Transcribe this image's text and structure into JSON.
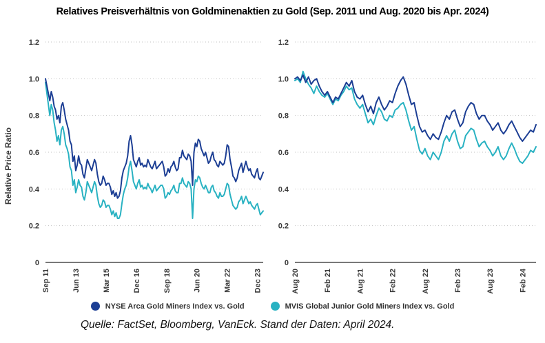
{
  "title": "Relatives Preisverhältnis von Goldminenaktien zu Gold (Sep. 2011 und Aug. 2020 bis Apr. 2024)",
  "y_axis_label": "Relative Price Ratio",
  "source": "Quelle: FactSet, Bloomberg, VanEck. Stand der Daten: April 2024.",
  "colors": {
    "navy": "#1c3e94",
    "teal": "#29b2c2",
    "grid": "#c2c2c2",
    "axis": "#4d4d4d",
    "tick_text": "#3a3a3a"
  },
  "legend": [
    {
      "label": "NYSE Arca Gold Miners Index vs. Gold",
      "color_key": "navy"
    },
    {
      "label": "MVIS Global Junior Gold Miners Index vs. Gold",
      "color_key": "teal"
    }
  ],
  "chart_data": [
    {
      "type": "line",
      "id": "left-panel",
      "period": "Sep 2011 - Apr 2024, monthly",
      "ylim": [
        0,
        1.2
      ],
      "grid": "dotted horizontal",
      "y_ticks": [
        {
          "label": "1.2",
          "value": 1.2
        },
        {
          "label": "1.0",
          "value": 1.0
        },
        {
          "label": "0.8",
          "value": 0.8
        },
        {
          "label": "0.6",
          "value": 0.6
        },
        {
          "label": "0.4",
          "value": 0.4
        },
        {
          "label": "0.2",
          "value": 0.2
        },
        {
          "label": "0",
          "value": 0
        }
      ],
      "x_ticks": [
        {
          "label": "Sep 11",
          "index": 0
        },
        {
          "label": "Jun 13",
          "index": 21
        },
        {
          "label": "Mar 15",
          "index": 42
        },
        {
          "label": "Dec 16",
          "index": 63
        },
        {
          "label": "Sep 18",
          "index": 84
        },
        {
          "label": "Jun 20",
          "index": 105
        },
        {
          "label": "Mar 22",
          "index": 126
        },
        {
          "label": "Dec 23",
          "index": 147
        }
      ],
      "series": [
        {
          "name": "NYSE Arca Gold Miners Index vs. Gold",
          "color_key": "navy",
          "values": [
            1.0,
            0.96,
            0.92,
            0.88,
            0.93,
            0.9,
            0.85,
            0.83,
            0.78,
            0.8,
            0.76,
            0.85,
            0.87,
            0.83,
            0.78,
            0.75,
            0.72,
            0.66,
            0.64,
            0.55,
            0.58,
            0.5,
            0.53,
            0.58,
            0.54,
            0.53,
            0.48,
            0.46,
            0.51,
            0.56,
            0.54,
            0.52,
            0.5,
            0.53,
            0.56,
            0.54,
            0.48,
            0.44,
            0.42,
            0.43,
            0.47,
            0.45,
            0.42,
            0.43,
            0.43,
            0.41,
            0.37,
            0.39,
            0.36,
            0.38,
            0.35,
            0.36,
            0.39,
            0.46,
            0.5,
            0.52,
            0.54,
            0.58,
            0.66,
            0.69,
            0.64,
            0.56,
            0.54,
            0.52,
            0.55,
            0.57,
            0.53,
            0.54,
            0.52,
            0.53,
            0.52,
            0.56,
            0.54,
            0.52,
            0.51,
            0.53,
            0.55,
            0.51,
            0.52,
            0.53,
            0.54,
            0.55,
            0.52,
            0.47,
            0.48,
            0.51,
            0.49,
            0.52,
            0.53,
            0.55,
            0.52,
            0.5,
            0.51,
            0.57,
            0.57,
            0.61,
            0.58,
            0.57,
            0.56,
            0.59,
            0.58,
            0.55,
            0.42,
            0.6,
            0.65,
            0.63,
            0.67,
            0.66,
            0.62,
            0.6,
            0.58,
            0.6,
            0.57,
            0.54,
            0.55,
            0.58,
            0.6,
            0.56,
            0.55,
            0.53,
            0.52,
            0.55,
            0.54,
            0.53,
            0.54,
            0.58,
            0.64,
            0.63,
            0.56,
            0.52,
            0.47,
            0.46,
            0.44,
            0.46,
            0.5,
            0.52,
            0.54,
            0.49,
            0.52,
            0.55,
            0.52,
            0.5,
            0.51,
            0.48,
            0.47,
            0.46,
            0.49,
            0.51,
            0.46,
            0.45,
            0.47,
            0.49
          ]
        },
        {
          "name": "MVIS Global Junior Gold Miners Index vs. Gold",
          "color_key": "teal",
          "values": [
            0.98,
            0.92,
            0.86,
            0.8,
            0.86,
            0.83,
            0.76,
            0.72,
            0.66,
            0.69,
            0.64,
            0.72,
            0.74,
            0.7,
            0.64,
            0.62,
            0.59,
            0.52,
            0.5,
            0.42,
            0.45,
            0.38,
            0.41,
            0.45,
            0.42,
            0.41,
            0.36,
            0.34,
            0.38,
            0.44,
            0.42,
            0.4,
            0.38,
            0.41,
            0.44,
            0.42,
            0.36,
            0.32,
            0.3,
            0.31,
            0.34,
            0.33,
            0.3,
            0.31,
            0.31,
            0.29,
            0.26,
            0.28,
            0.25,
            0.27,
            0.24,
            0.24,
            0.26,
            0.32,
            0.37,
            0.4,
            0.42,
            0.46,
            0.52,
            0.55,
            0.5,
            0.44,
            0.42,
            0.4,
            0.43,
            0.45,
            0.41,
            0.42,
            0.4,
            0.41,
            0.4,
            0.43,
            0.41,
            0.4,
            0.38,
            0.4,
            0.42,
            0.39,
            0.4,
            0.41,
            0.42,
            0.42,
            0.4,
            0.35,
            0.36,
            0.38,
            0.37,
            0.39,
            0.4,
            0.42,
            0.39,
            0.38,
            0.38,
            0.43,
            0.43,
            0.46,
            0.43,
            0.42,
            0.41,
            0.44,
            0.43,
            0.4,
            0.24,
            0.4,
            0.45,
            0.44,
            0.47,
            0.46,
            0.43,
            0.41,
            0.4,
            0.42,
            0.4,
            0.38,
            0.38,
            0.41,
            0.42,
            0.39,
            0.38,
            0.36,
            0.35,
            0.38,
            0.36,
            0.36,
            0.37,
            0.4,
            0.43,
            0.42,
            0.37,
            0.34,
            0.31,
            0.3,
            0.29,
            0.3,
            0.33,
            0.34,
            0.36,
            0.32,
            0.34,
            0.36,
            0.34,
            0.32,
            0.33,
            0.31,
            0.3,
            0.29,
            0.31,
            0.32,
            0.29,
            0.26,
            0.27,
            0.28
          ]
        }
      ]
    },
    {
      "type": "line",
      "id": "right-panel",
      "period": "Aug 2020 - Apr 2024, semi-monthly",
      "ylim": [
        0,
        1.2
      ],
      "grid": "dotted horizontal",
      "y_ticks": [
        {
          "label": "1.2",
          "value": 1.2
        },
        {
          "label": "1.0",
          "value": 1.0
        },
        {
          "label": "0.8",
          "value": 0.8
        },
        {
          "label": "0.6",
          "value": 0.6
        },
        {
          "label": "0.4",
          "value": 0.4
        },
        {
          "label": "0.2",
          "value": 0.2
        },
        {
          "label": "0",
          "value": 0
        }
      ],
      "x_ticks": [
        {
          "label": "Aug 20",
          "index": 0
        },
        {
          "label": "Feb 21",
          "index": 12
        },
        {
          "label": "Aug 21",
          "index": 24
        },
        {
          "label": "Feb 22",
          "index": 36
        },
        {
          "label": "Aug 22",
          "index": 48
        },
        {
          "label": "Feb 23",
          "index": 60
        },
        {
          "label": "Aug 23",
          "index": 72
        },
        {
          "label": "Feb 24",
          "index": 84
        }
      ],
      "series": [
        {
          "name": "NYSE Arca Gold Miners Index vs. Gold",
          "color_key": "navy",
          "values": [
            1.0,
            1.01,
            0.99,
            1.02,
            0.98,
            1.01,
            0.97,
            0.99,
            1.0,
            0.96,
            0.93,
            0.91,
            0.93,
            0.9,
            0.87,
            0.9,
            0.89,
            0.92,
            0.95,
            0.98,
            0.96,
            0.99,
            0.93,
            0.9,
            0.89,
            0.91,
            0.86,
            0.82,
            0.85,
            0.81,
            0.87,
            0.9,
            0.86,
            0.83,
            0.85,
            0.88,
            0.87,
            0.92,
            0.96,
            0.99,
            1.01,
            0.97,
            0.91,
            0.86,
            0.87,
            0.8,
            0.74,
            0.71,
            0.72,
            0.69,
            0.67,
            0.7,
            0.68,
            0.67,
            0.71,
            0.76,
            0.8,
            0.78,
            0.82,
            0.83,
            0.78,
            0.74,
            0.76,
            0.82,
            0.85,
            0.87,
            0.86,
            0.81,
            0.78,
            0.8,
            0.8,
            0.77,
            0.75,
            0.72,
            0.74,
            0.76,
            0.72,
            0.7,
            0.72,
            0.75,
            0.77,
            0.74,
            0.71,
            0.68,
            0.66,
            0.68,
            0.7,
            0.72,
            0.71,
            0.75
          ]
        },
        {
          "name": "MVIS Global Junior Gold Miners Index vs. Gold",
          "color_key": "teal",
          "values": [
            0.99,
            1.0,
            0.98,
            1.04,
            1.0,
            0.97,
            0.95,
            0.92,
            0.96,
            0.93,
            0.91,
            0.9,
            0.92,
            0.89,
            0.86,
            0.89,
            0.88,
            0.91,
            0.93,
            0.96,
            0.94,
            0.95,
            0.89,
            0.86,
            0.84,
            0.86,
            0.81,
            0.76,
            0.78,
            0.75,
            0.8,
            0.84,
            0.82,
            0.78,
            0.77,
            0.8,
            0.79,
            0.83,
            0.84,
            0.86,
            0.87,
            0.83,
            0.77,
            0.72,
            0.74,
            0.67,
            0.61,
            0.59,
            0.62,
            0.58,
            0.56,
            0.6,
            0.58,
            0.56,
            0.6,
            0.66,
            0.69,
            0.66,
            0.7,
            0.72,
            0.66,
            0.62,
            0.63,
            0.69,
            0.71,
            0.73,
            0.72,
            0.67,
            0.63,
            0.65,
            0.66,
            0.63,
            0.61,
            0.58,
            0.6,
            0.63,
            0.58,
            0.56,
            0.58,
            0.62,
            0.65,
            0.62,
            0.58,
            0.55,
            0.54,
            0.56,
            0.58,
            0.61,
            0.6,
            0.63
          ]
        }
      ]
    }
  ]
}
